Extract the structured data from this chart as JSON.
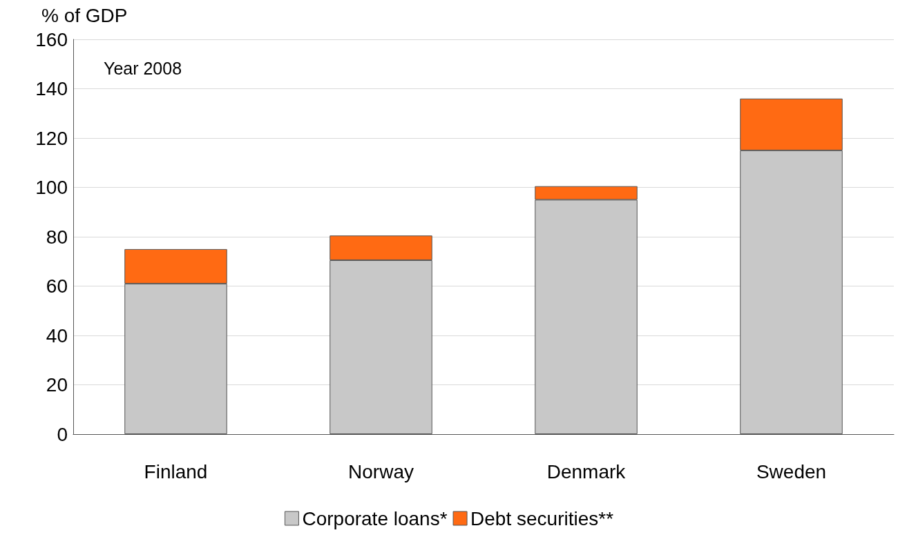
{
  "chart_data": {
    "type": "bar",
    "stacked": true,
    "ylabel": "% of GDP",
    "categories": [
      "Finland",
      "Norway",
      "Denmark",
      "Sweden"
    ],
    "series": [
      {
        "name": "Corporate loans*",
        "color": "#c8c8c8",
        "values": [
          61,
          70.5,
          95,
          115
        ]
      },
      {
        "name": "Debt securities**",
        "color": "#ff6a13",
        "values": [
          14,
          10,
          5.5,
          21
        ]
      }
    ],
    "ylim": [
      0,
      160
    ],
    "yticks": [
      0,
      20,
      40,
      60,
      80,
      100,
      120,
      140,
      160
    ],
    "grid": "y",
    "legend": "bottom",
    "annotations": [
      "Year 2008"
    ]
  }
}
